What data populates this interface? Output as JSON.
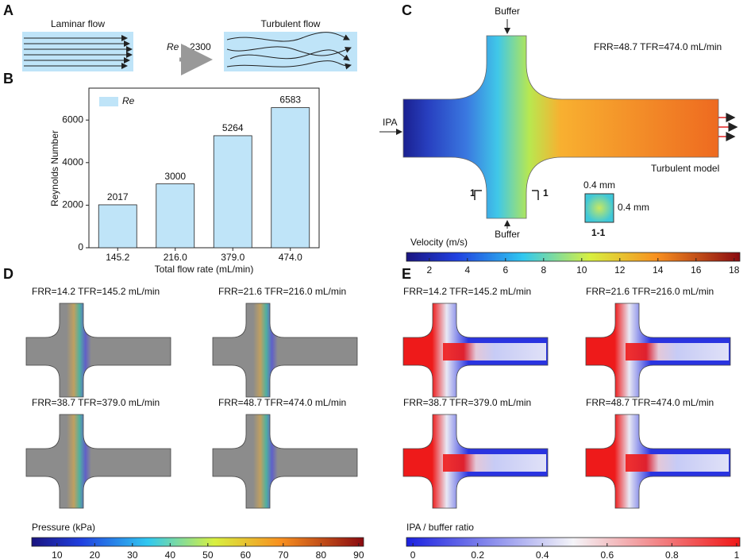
{
  "panel_a": {
    "label": "A",
    "laminar": "Laminar flow",
    "turbulent": "Turbulent flow",
    "condition_symbol": "Re",
    "condition_text": " > 2300"
  },
  "chart_data": {
    "type": "bar",
    "label": "B",
    "x_label": "Total flow rate (mL/min)",
    "y_label": "Reynolds Number",
    "categories": [
      "145.2",
      "216.0",
      "379.0",
      "474.0"
    ],
    "series": [
      {
        "name": "Re",
        "color": "#bfe4f8",
        "values": [
          2017,
          3000,
          5264,
          6583
        ]
      }
    ],
    "ylim": [
      0,
      7500
    ],
    "yticks": [
      0,
      2000,
      4000,
      6000
    ]
  },
  "panel_c": {
    "label": "C",
    "buffer_top": "Buffer",
    "buffer_bottom": "Buffer",
    "inlet": "IPA",
    "condition": "FRR=48.7  TFR=474.0 mL/min",
    "model": "Turbulent model",
    "cut_left": "1",
    "cut_right": "1",
    "section_width": "0.4 mm",
    "section_height": "0.4 mm",
    "section_label": "1-1",
    "colorbar": {
      "title": "Velocity  (m/s)",
      "lim": [
        0.8,
        18.3
      ],
      "ticks": [
        2,
        4,
        6,
        8,
        10,
        12,
        14,
        16,
        18
      ]
    }
  },
  "panel_d": {
    "label": "D",
    "conditions": [
      "FRR=14.2  TFR=145.2 mL/min",
      "FRR=21.6  TFR=216.0 mL/min",
      "FRR=38.7  TFR=379.0 mL/min",
      "FRR=48.7  TFR=474.0 mL/min"
    ],
    "colorbar": {
      "title": "Pressure (kPa)",
      "lim": [
        3.3,
        91.3
      ],
      "ticks": [
        10,
        20,
        30,
        40,
        50,
        60,
        70,
        80,
        90
      ]
    }
  },
  "panel_e": {
    "label": "E",
    "conditions": [
      "FRR=14.2  TFR=145.2 mL/min",
      "FRR=21.6  TFR=216.0 mL/min",
      "FRR=38.7  TFR=379.0 mL/min",
      "FRR=48.7  TFR=474.0 mL/min"
    ],
    "colorbar": {
      "title": "IPA / buffer ratio",
      "lim": [
        -0.02,
        1.01
      ],
      "ticks": [
        0,
        0.2,
        0.4,
        0.6,
        0.8,
        1
      ]
    }
  }
}
